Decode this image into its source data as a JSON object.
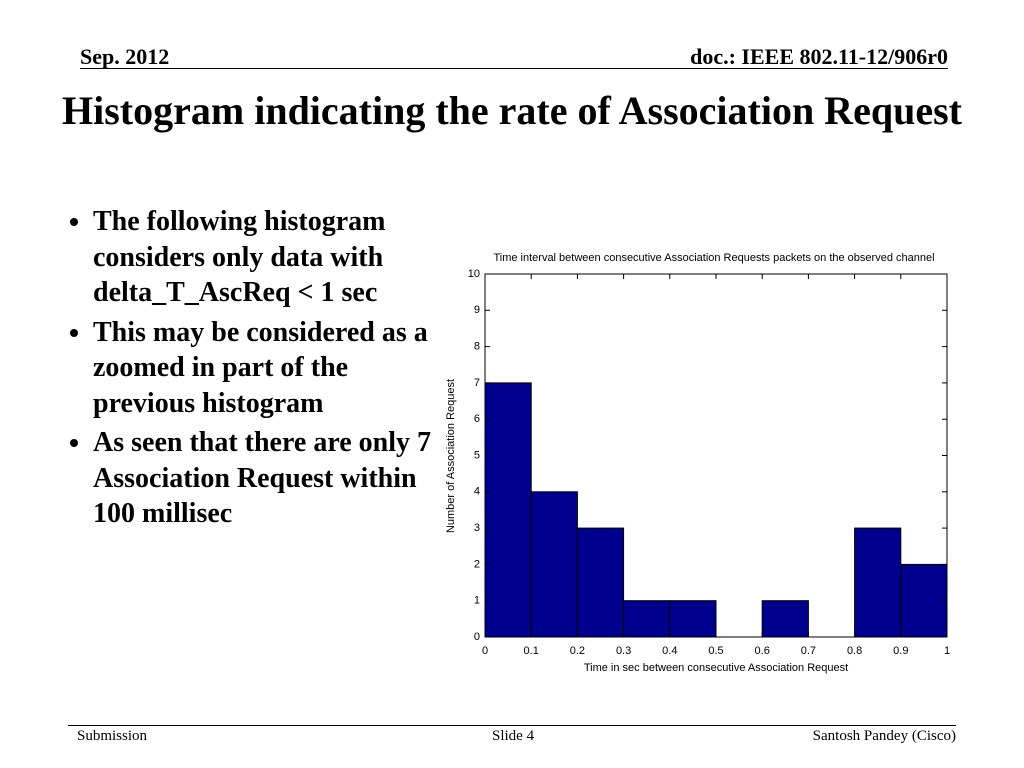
{
  "header": {
    "date": "Sep.  2012",
    "doc": "doc.: IEEE 802.11-12/906r0"
  },
  "title": "Histogram indicating the rate of Association Request",
  "bullets": [
    "The following histogram considers only data with delta_T_AscReq < 1 sec",
    "This may be considered as a zoomed in part of the previous histogram",
    "As seen that there are only 7 Association Request within 100 millisec"
  ],
  "chart_data": {
    "type": "histogram",
    "title": "Time interval between consecutive Association Requests packets on the observed channel",
    "xlabel": "Time in sec between consecutive Association Request",
    "ylabel": "Number of Association Request",
    "bins": [
      0,
      0.1,
      0.2,
      0.3,
      0.4,
      0.5,
      0.6,
      0.7,
      0.8,
      0.9,
      1
    ],
    "values": [
      7,
      4,
      3,
      1,
      1,
      0,
      1,
      0,
      3,
      2
    ],
    "color": "#00008f",
    "xlim": [
      0,
      1
    ],
    "xticks": [
      0,
      0.1,
      0.2,
      0.3,
      0.4,
      0.5,
      0.6,
      0.7,
      0.8,
      0.9,
      1
    ],
    "ylim": [
      0,
      10
    ],
    "yticks": [
      0,
      1,
      2,
      3,
      4,
      5,
      6,
      7,
      8,
      9,
      10
    ]
  },
  "footer": {
    "left": "Submission",
    "center": "Slide 4",
    "right": "Santosh Pandey (Cisco)"
  }
}
